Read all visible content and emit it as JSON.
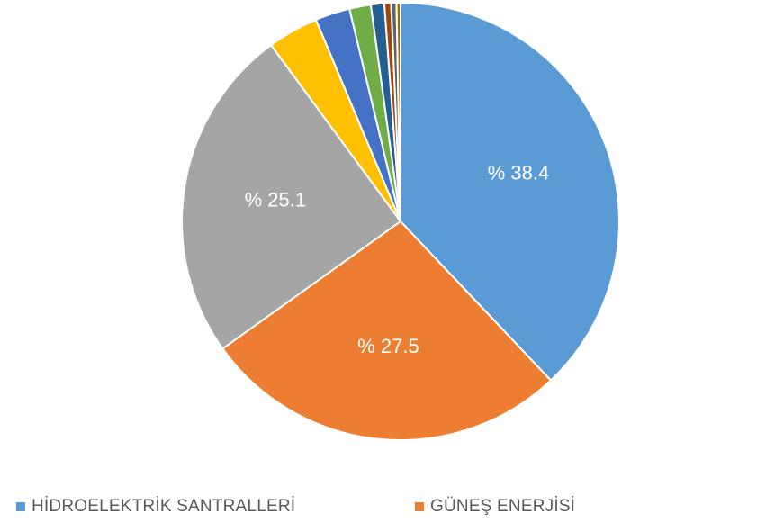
{
  "chart_data": {
    "type": "pie",
    "slices": [
      {
        "name": "HİDROELEKTRİK SANTRALLERİ",
        "value": 38.4,
        "label": "% 38.4",
        "color": "#5b9bd5"
      },
      {
        "name": "GÜNEŞ ENERJİSİ",
        "value": 27.5,
        "label": "% 27.5",
        "color": "#ed7d31"
      },
      {
        "name": "",
        "value": 25.1,
        "label": "% 25.1",
        "color": "#a5a5a5"
      },
      {
        "name": "",
        "value": 3.8,
        "label": "",
        "color": "#ffc000"
      },
      {
        "name": "",
        "value": 2.6,
        "label": "",
        "color": "#4472c4"
      },
      {
        "name": "",
        "value": 1.6,
        "label": "",
        "color": "#70ad47"
      },
      {
        "name": "",
        "value": 1.0,
        "label": "",
        "color": "#255e91"
      },
      {
        "name": "",
        "value": 0.5,
        "label": "",
        "color": "#9e480e"
      },
      {
        "name": "",
        "value": 0.4,
        "label": "",
        "color": "#636363"
      },
      {
        "name": "",
        "value": 0.3,
        "label": "",
        "color": "#997300"
      }
    ],
    "legend_position": "bottom"
  }
}
